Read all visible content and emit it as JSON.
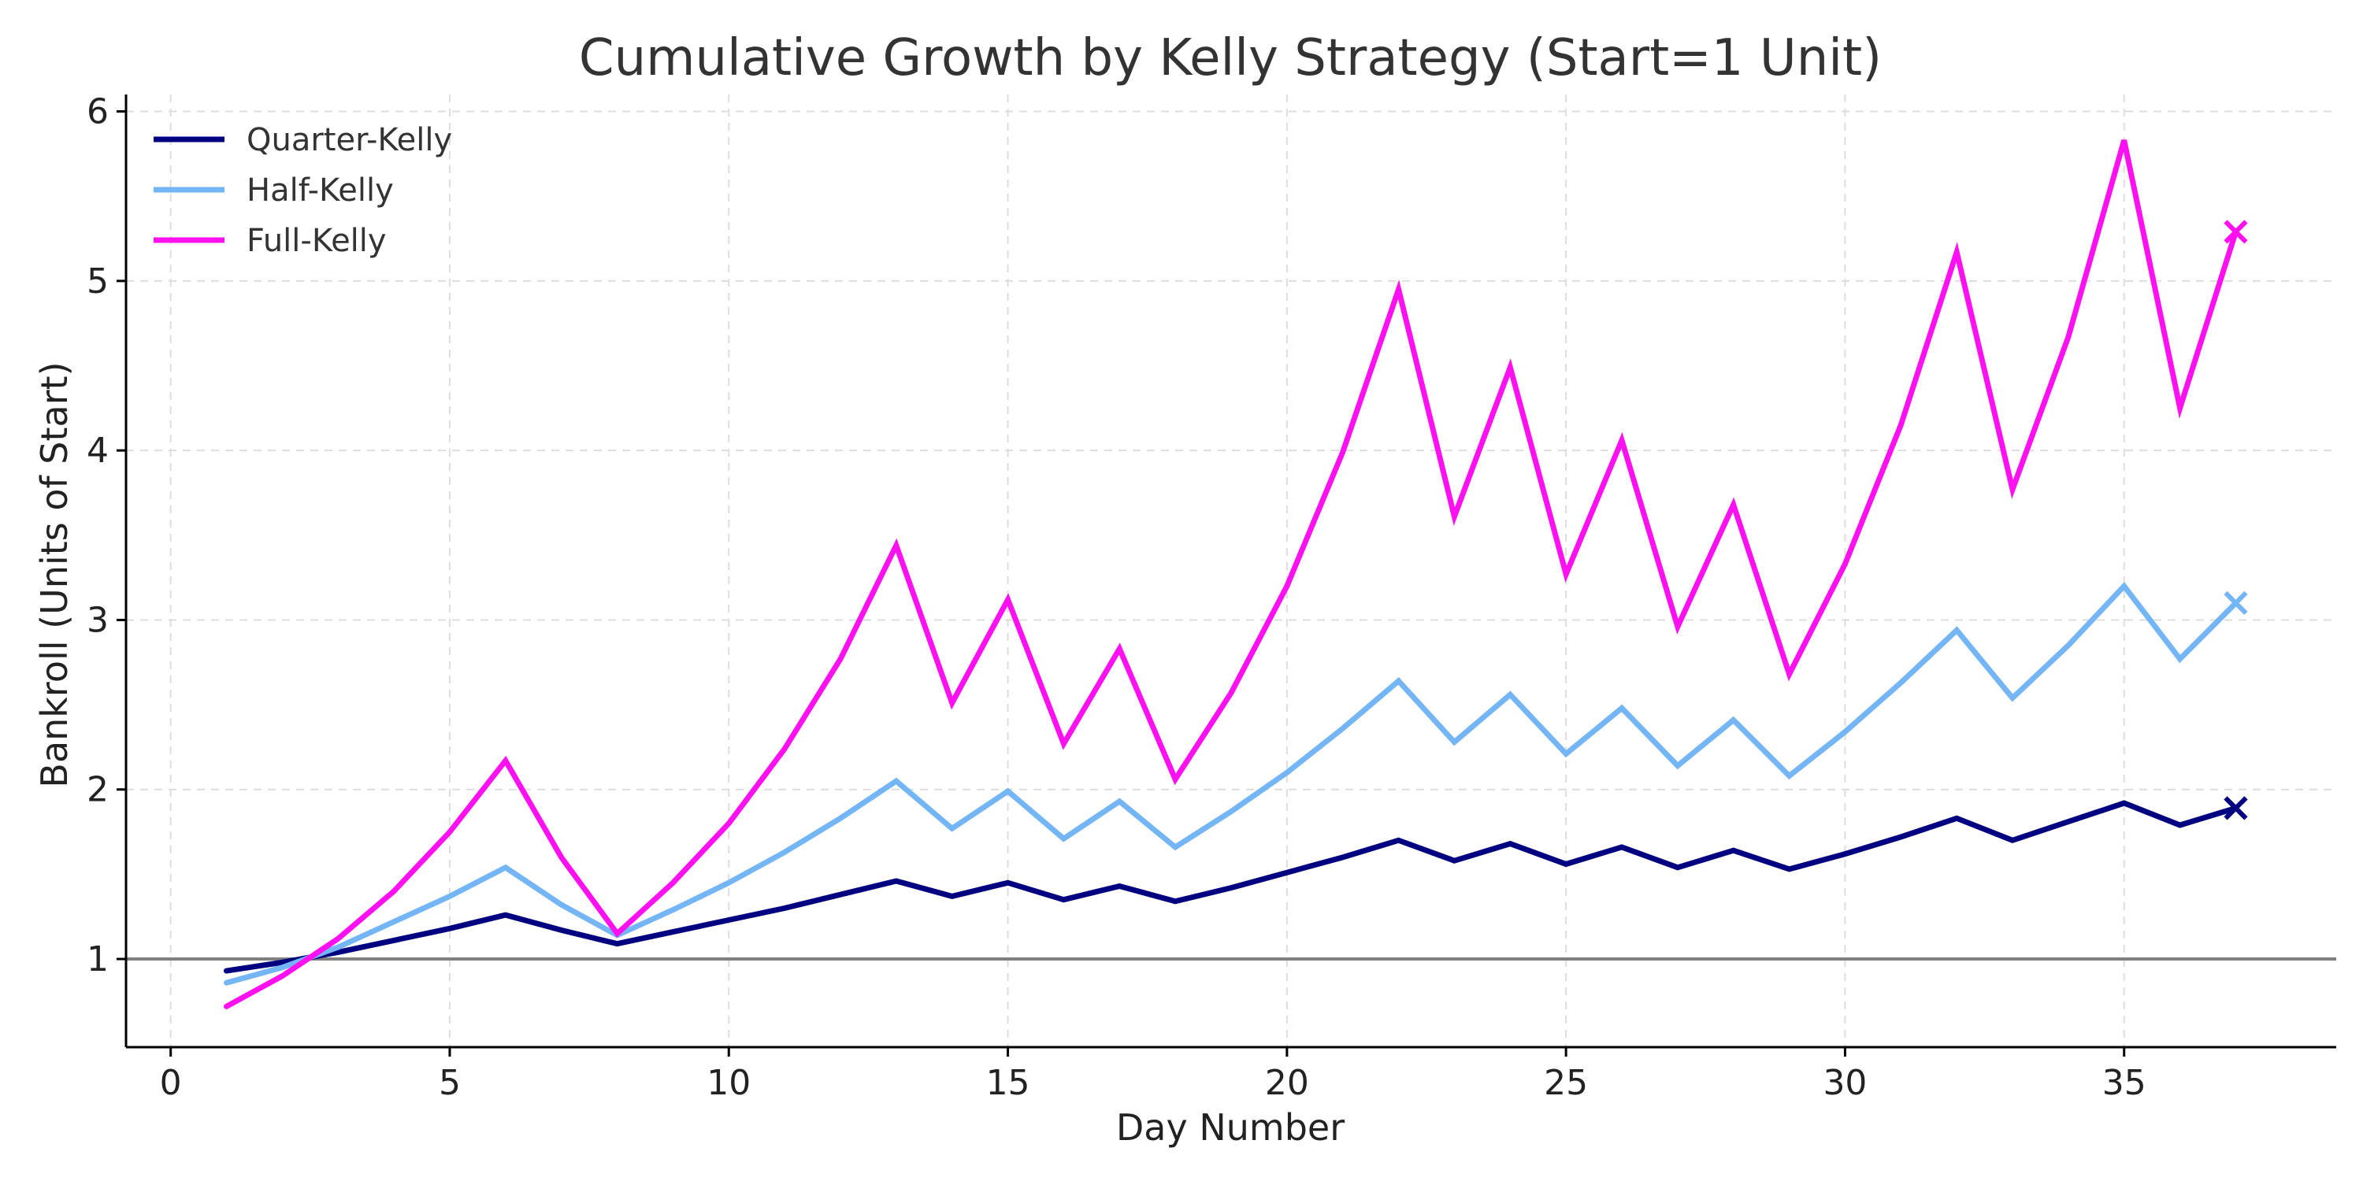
{
  "chart_data": {
    "type": "line",
    "title": "Cumulative Growth by Kelly Strategy (Start=1 Unit)",
    "xlabel": "Day Number",
    "ylabel": "Bankroll (Units of Start)",
    "xlim": [
      -0.8,
      38.8
    ],
    "ylim": [
      0.48,
      6.1
    ],
    "xticks": [
      0,
      5,
      10,
      15,
      20,
      25,
      30,
      35
    ],
    "yticks": [
      1,
      2,
      3,
      4,
      5,
      6
    ],
    "grid": true,
    "legend": "top-left",
    "reference_line": {
      "y": 1,
      "color": "#808080"
    },
    "x": [
      1,
      2,
      3,
      4,
      5,
      6,
      7,
      8,
      9,
      10,
      11,
      12,
      13,
      14,
      15,
      16,
      17,
      18,
      19,
      20,
      21,
      22,
      23,
      24,
      25,
      26,
      27,
      28,
      29,
      30,
      31,
      32,
      33,
      34,
      35,
      36,
      37
    ],
    "series": [
      {
        "name": "Quarter-Kelly",
        "color": "#000080",
        "end_marker": "x",
        "values": [
          0.93,
          0.98,
          1.04,
          1.11,
          1.18,
          1.26,
          1.17,
          1.09,
          1.16,
          1.23,
          1.3,
          1.38,
          1.46,
          1.37,
          1.45,
          1.35,
          1.43,
          1.34,
          1.42,
          1.51,
          1.6,
          1.7,
          1.58,
          1.68,
          1.56,
          1.66,
          1.54,
          1.64,
          1.53,
          1.62,
          1.72,
          1.83,
          1.7,
          1.81,
          1.92,
          1.79,
          1.89
        ]
      },
      {
        "name": "Half-Kelly",
        "color": "#74b6f5",
        "end_marker": "x",
        "values": [
          0.86,
          0.95,
          1.07,
          1.22,
          1.37,
          1.54,
          1.32,
          1.14,
          1.29,
          1.45,
          1.63,
          1.83,
          2.05,
          1.77,
          1.99,
          1.71,
          1.93,
          1.66,
          1.87,
          2.1,
          2.36,
          2.64,
          2.28,
          2.56,
          2.21,
          2.48,
          2.14,
          2.41,
          2.08,
          2.34,
          2.63,
          2.94,
          2.54,
          2.85,
          3.2,
          2.77,
          3.1
        ]
      },
      {
        "name": "Full-Kelly",
        "color": "#ff10f0",
        "end_marker": "x",
        "values": [
          0.72,
          0.9,
          1.12,
          1.4,
          1.75,
          2.17,
          1.6,
          1.15,
          1.45,
          1.8,
          2.24,
          2.77,
          3.44,
          2.51,
          3.12,
          2.27,
          2.83,
          2.06,
          2.57,
          3.2,
          3.99,
          4.95,
          3.61,
          4.49,
          3.27,
          4.06,
          2.96,
          3.68,
          2.68,
          3.33,
          4.15,
          5.17,
          3.77,
          4.67,
          5.83,
          4.25,
          5.29
        ]
      }
    ]
  }
}
